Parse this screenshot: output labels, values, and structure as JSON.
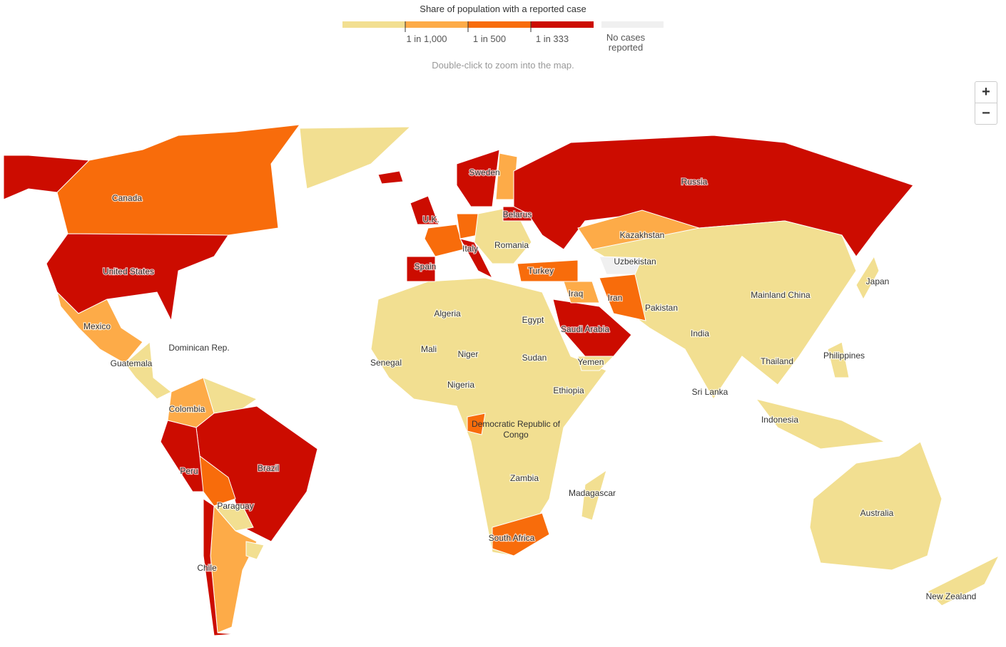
{
  "legend": {
    "title": "Share of population with a reported case",
    "colors": [
      "#f2df91",
      "#fdab48",
      "#f86c0b",
      "#cc0c00"
    ],
    "thresholds": [
      "1 in 1,000",
      "1 in 500",
      "1 in 333"
    ],
    "no_data": {
      "label": "No cases reported",
      "color": "#f0f0f0"
    }
  },
  "note": "Double-click to zoom into the map.",
  "zoom": {
    "in": "+",
    "out": "−"
  },
  "labels": [
    "Canada",
    "United States",
    "Mexico",
    "Dominican Rep.",
    "Guatemala",
    "Colombia",
    "Peru",
    "Brazil",
    "Paraguay",
    "Chile",
    "Sweden",
    "U.K.",
    "Belarus",
    "Romania",
    "Italy",
    "Spain",
    "Turkey",
    "Russia",
    "Kazakhstan",
    "Uzbekistan",
    "Iraq",
    "Iran",
    "Saudi Arabia",
    "Yemen",
    "Pakistan",
    "India",
    "Sri Lanka",
    "Mainland China",
    "Japan",
    "Philippines",
    "Thailand",
    "Indonesia",
    "Australia",
    "New Zealand",
    "Algeria",
    "Egypt",
    "Mali",
    "Niger",
    "Senegal",
    "Sudan",
    "Nigeria",
    "Ethiopia",
    "Democratic Republic of Congo",
    "Zambia",
    "Madagascar",
    "South Africa"
  ]
}
